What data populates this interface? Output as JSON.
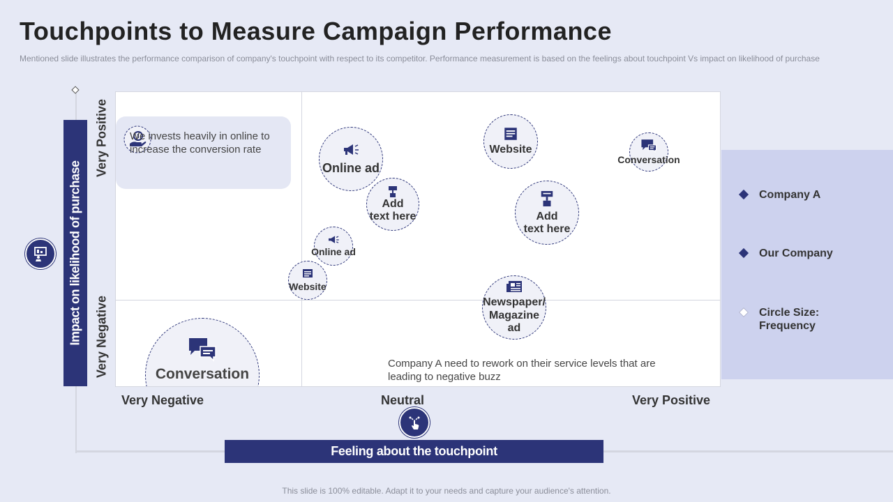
{
  "slide": {
    "title": "Touchpoints to Measure Campaign Performance",
    "subtitle": "Mentioned slide illustrates the performance  comparison of company's touchpoint with respect to its competitor. Performance measurement is based on the feelings about touchpoint Vs impact on likelihood of purchase",
    "footer": "This slide is 100% editable. Adapt it to your needs and capture your audience's attention."
  },
  "y_axis": {
    "title": "Impact on likelihood of purchase",
    "top_label": "Very Positive",
    "bottom_label": "Very Negative",
    "icon": "presentation-icon"
  },
  "x_axis": {
    "title": "Feeling about the touchpoint",
    "labels": [
      "Very Negative",
      "Neutral",
      "Very Positive"
    ],
    "icon": "touch-icon"
  },
  "callout": {
    "text": "We invests heavily in online to increase the conversion rate",
    "icon": "money-hand-icon"
  },
  "note": {
    "text": "Company A need to rework on their service levels that are leading to negative buzz"
  },
  "bubbles": [
    {
      "label": "Online ad",
      "icon": "megaphone-icon",
      "size": "large"
    },
    {
      "label": "Add\ntext here",
      "icon": "sign-icon",
      "size": "medium"
    },
    {
      "label": "Online ad",
      "icon": "megaphone-icon",
      "size": "small"
    },
    {
      "label": "Website",
      "icon": "browser-icon",
      "size": "small"
    },
    {
      "label": "Conversation",
      "icon": "chat-icon",
      "size": "xlarge"
    },
    {
      "label": "Website",
      "icon": "browser-icon",
      "size": "large"
    },
    {
      "label": "Add\ntext here",
      "icon": "sign-icon",
      "size": "large"
    },
    {
      "label": "Conversation",
      "icon": "chat-icon",
      "size": "small"
    },
    {
      "label": "Newspaper/\nMagazine ad",
      "icon": "newspaper-icon",
      "size": "large"
    }
  ],
  "legend": {
    "items": [
      {
        "label": "Company A",
        "color": "#2c3478",
        "filled": true
      },
      {
        "label": "Our Company",
        "color": "#2c3478",
        "filled": true
      },
      {
        "label": "Circle Size: Frequency",
        "color": "#ffffff",
        "filled": false
      }
    ]
  },
  "colors": {
    "primary": "#2c3478",
    "background": "#e6e9f5",
    "legend_panel": "#cdd2ee"
  }
}
